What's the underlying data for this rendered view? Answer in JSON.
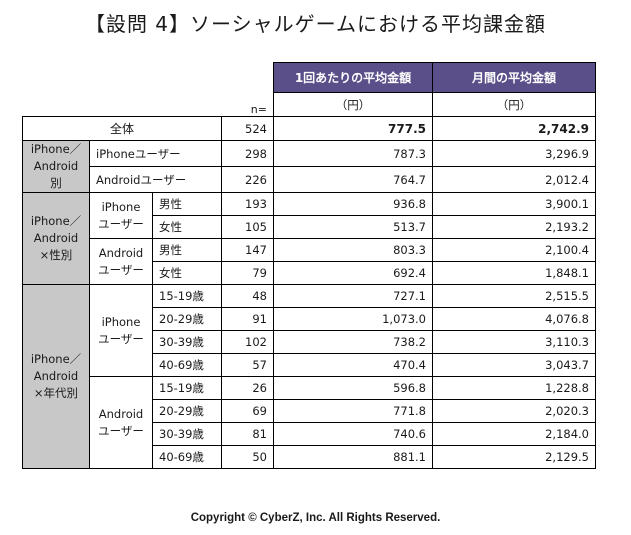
{
  "title": "【設問 4】ソーシャルゲームにおける平均課金額",
  "header": {
    "col_per_purchase": "1回あたりの平均金額",
    "col_monthly": "月間の平均金額",
    "unit_per_purchase": "（円）",
    "unit_monthly": "（円）",
    "n_label": "n="
  },
  "total": {
    "label": "全体",
    "n": "524",
    "per_purchase": "777.5",
    "monthly": "2,742.9"
  },
  "os_group": {
    "label": "iPhone／Android別",
    "rows": [
      {
        "label": "iPhoneユーザー",
        "n": "298",
        "per_purchase": "787.3",
        "monthly": "3,296.9"
      },
      {
        "label": "Androidユーザー",
        "n": "226",
        "per_purchase": "764.7",
        "monthly": "2,012.4"
      }
    ]
  },
  "gender_group": {
    "label": "iPhone／Android ×性別",
    "subgroups": [
      {
        "label": "iPhone ユーザー",
        "rows": [
          {
            "label": "男性",
            "n": "193",
            "per_purchase": "936.8",
            "monthly": "3,900.1"
          },
          {
            "label": "女性",
            "n": "105",
            "per_purchase": "513.7",
            "monthly": "2,193.2"
          }
        ]
      },
      {
        "label": "Android ユーザー",
        "rows": [
          {
            "label": "男性",
            "n": "147",
            "per_purchase": "803.3",
            "monthly": "2,100.4"
          },
          {
            "label": "女性",
            "n": "79",
            "per_purchase": "692.4",
            "monthly": "1,848.1"
          }
        ]
      }
    ]
  },
  "age_group": {
    "label": "iPhone／Android ×年代別",
    "subgroups": [
      {
        "label": "iPhone ユーザー",
        "rows": [
          {
            "label": "15-19歳",
            "n": "48",
            "per_purchase": "727.1",
            "monthly": "2,515.5"
          },
          {
            "label": "20-29歳",
            "n": "91",
            "per_purchase": "1,073.0",
            "monthly": "4,076.8"
          },
          {
            "label": "30-39歳",
            "n": "102",
            "per_purchase": "738.2",
            "monthly": "3,110.3"
          },
          {
            "label": "40-69歳",
            "n": "57",
            "per_purchase": "470.4",
            "monthly": "3,043.7"
          }
        ]
      },
      {
        "label": "Android ユーザー",
        "rows": [
          {
            "label": "15-19歳",
            "n": "26",
            "per_purchase": "596.8",
            "monthly": "1,228.8"
          },
          {
            "label": "20-29歳",
            "n": "69",
            "per_purchase": "771.8",
            "monthly": "2,020.3"
          },
          {
            "label": "30-39歳",
            "n": "81",
            "per_purchase": "740.6",
            "monthly": "2,184.0"
          },
          {
            "label": "40-69歳",
            "n": "50",
            "per_purchase": "881.1",
            "monthly": "2,129.5"
          }
        ]
      }
    ]
  },
  "colors": {
    "header_bg": "#5b4f8a",
    "group_bg": "#c8c8c8"
  },
  "copyright": "Copyright © CyberZ, Inc. All Rights Reserved."
}
